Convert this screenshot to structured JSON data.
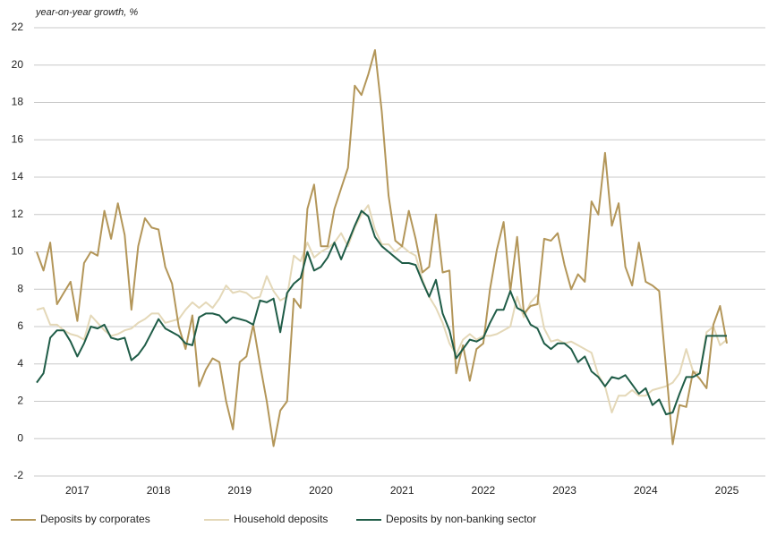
{
  "chart_data": {
    "type": "line",
    "y_label": "year-on-year growth, %",
    "categories": [
      null,
      null,
      null,
      null,
      null,
      null,
      "2017",
      null,
      null,
      null,
      null,
      null,
      null,
      null,
      null,
      null,
      null,
      null,
      "2018",
      null,
      null,
      null,
      null,
      null,
      null,
      null,
      null,
      null,
      null,
      null,
      "2019",
      null,
      null,
      null,
      null,
      null,
      null,
      null,
      null,
      null,
      null,
      null,
      "2020",
      null,
      null,
      null,
      null,
      null,
      null,
      null,
      null,
      null,
      null,
      null,
      "2021",
      null,
      null,
      null,
      null,
      null,
      null,
      null,
      null,
      null,
      null,
      null,
      "2022",
      null,
      null,
      null,
      null,
      null,
      null,
      null,
      null,
      null,
      null,
      null,
      "2023",
      null,
      null,
      null,
      null,
      null,
      null,
      null,
      null,
      null,
      null,
      null,
      "2024",
      null,
      null,
      null,
      null,
      null,
      null,
      null,
      null,
      null,
      null,
      null,
      "2025"
    ],
    "series": [
      {
        "name": "Deposits by corporates",
        "color": "#b39659",
        "values": [
          10.0,
          9.0,
          10.5,
          7.2,
          7.8,
          8.4,
          6.3,
          9.4,
          10.0,
          9.8,
          12.2,
          10.7,
          12.6,
          10.9,
          6.9,
          10.3,
          11.8,
          11.3,
          11.2,
          9.2,
          8.3,
          6.0,
          4.8,
          6.6,
          2.8,
          3.7,
          4.3,
          4.1,
          2.0,
          0.5,
          4.1,
          4.4,
          6.1,
          4.0,
          2.0,
          -0.4,
          1.5,
          2.0,
          7.5,
          7.0,
          12.3,
          13.6,
          10.3,
          10.3,
          12.3,
          13.4,
          14.5,
          18.9,
          18.4,
          19.5,
          20.8,
          17.5,
          13.0,
          10.6,
          10.3,
          12.2,
          10.7,
          8.9,
          9.2,
          12.0,
          8.9,
          9.0,
          3.5,
          5.0,
          3.1,
          4.8,
          5.1,
          8.0,
          10.1,
          11.6,
          7.9,
          10.8,
          6.7,
          7.1,
          7.2,
          10.7,
          10.6,
          11.0,
          9.3,
          8.0,
          8.8,
          8.4,
          12.7,
          12.0,
          15.3,
          11.4,
          12.6,
          9.2,
          8.2,
          10.5,
          8.4,
          8.2,
          7.9,
          3.8,
          -0.3,
          1.8,
          1.7,
          3.6,
          3.2,
          2.7,
          6.1,
          7.1,
          5.1
        ]
      },
      {
        "name": "Household deposits",
        "color": "#e4d8b8",
        "values": [
          6.9,
          7.0,
          6.1,
          6.1,
          5.8,
          5.6,
          5.5,
          5.3,
          6.6,
          6.2,
          5.8,
          5.5,
          5.6,
          5.8,
          5.9,
          6.2,
          6.4,
          6.7,
          6.7,
          6.2,
          6.3,
          6.4,
          6.9,
          7.3,
          7.0,
          7.3,
          7.0,
          7.5,
          8.2,
          7.8,
          7.9,
          7.8,
          7.5,
          7.6,
          8.7,
          7.9,
          7.4,
          7.6,
          9.8,
          9.5,
          10.5,
          9.7,
          10.0,
          10.2,
          10.5,
          11.0,
          10.3,
          11.3,
          12.0,
          12.5,
          11.2,
          10.4,
          10.4,
          10.0,
          10.3,
          10.0,
          9.8,
          8.5,
          7.6,
          7.0,
          6.2,
          5.1,
          4.5,
          5.3,
          5.6,
          5.3,
          5.5,
          5.5,
          5.6,
          5.8,
          6.0,
          7.6,
          6.5,
          7.3,
          7.7,
          5.9,
          5.2,
          5.3,
          5.1,
          5.2,
          5.0,
          4.8,
          4.6,
          3.4,
          2.8,
          1.4,
          2.3,
          2.3,
          2.6,
          2.3,
          2.3,
          2.6,
          2.7,
          2.8,
          3.0,
          3.5,
          4.8,
          3.6,
          3.5,
          5.7,
          6.0,
          5.0,
          5.3
        ]
      },
      {
        "name": "Deposits by non-banking sector",
        "color": "#1f5c47",
        "values": [
          3.0,
          3.5,
          5.4,
          5.8,
          5.8,
          5.2,
          4.4,
          5.1,
          6.0,
          5.9,
          6.1,
          5.4,
          5.3,
          5.4,
          4.2,
          4.5,
          5.0,
          5.7,
          6.4,
          5.9,
          5.7,
          5.5,
          5.1,
          5.0,
          6.5,
          6.7,
          6.7,
          6.6,
          6.2,
          6.5,
          6.4,
          6.3,
          6.1,
          7.4,
          7.3,
          7.5,
          5.7,
          7.8,
          8.3,
          8.6,
          10.0,
          9.0,
          9.2,
          9.7,
          10.5,
          9.6,
          10.5,
          11.4,
          12.2,
          11.9,
          10.8,
          10.3,
          10.0,
          9.7,
          9.4,
          9.4,
          9.3,
          8.4,
          7.6,
          8.5,
          6.7,
          5.8,
          4.3,
          4.8,
          5.3,
          5.2,
          5.4,
          6.2,
          6.9,
          6.9,
          7.9,
          7.0,
          6.8,
          6.1,
          5.9,
          5.1,
          4.8,
          5.1,
          5.1,
          4.8,
          4.1,
          4.4,
          3.6,
          3.3,
          2.8,
          3.3,
          3.2,
          3.4,
          2.9,
          2.4,
          2.7,
          1.8,
          2.1,
          1.3,
          1.4,
          2.4,
          3.3,
          3.3,
          3.5,
          5.5,
          5.5,
          5.5,
          5.5
        ]
      }
    ],
    "ylim": [
      -2,
      22
    ],
    "yticks": [
      -2,
      0,
      2,
      4,
      6,
      8,
      10,
      12,
      14,
      16,
      18,
      20,
      22
    ],
    "grid": true
  }
}
